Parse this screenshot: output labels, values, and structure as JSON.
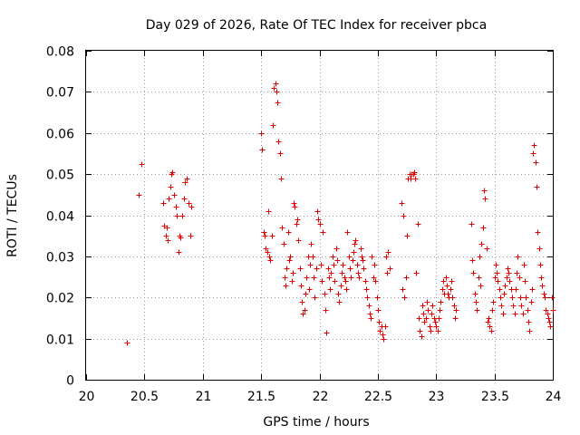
{
  "chart_data": {
    "type": "scatter",
    "title": "Day 029 of 2026, Rate Of TEC Index for receiver pbca",
    "xlabel": "GPS time / hours",
    "ylabel": "ROTI / TECUs",
    "xlim": [
      20,
      24
    ],
    "ylim": [
      0,
      0.08
    ],
    "xticks": [
      "20",
      "20.5",
      "21",
      "21.5",
      "22",
      "22.5",
      "23",
      "23.5",
      "24"
    ],
    "yticks": [
      "0",
      "0.01",
      "0.02",
      "0.03",
      "0.04",
      "0.05",
      "0.06",
      "0.07",
      "0.08"
    ],
    "marker": "+",
    "color": "#e00000",
    "grid": true,
    "series": [
      {
        "name": "ROTI",
        "points": [
          [
            20.35,
            0.009
          ],
          [
            20.45,
            0.045
          ],
          [
            20.47,
            0.0525
          ],
          [
            20.66,
            0.043
          ],
          [
            20.67,
            0.0375
          ],
          [
            20.68,
            0.035
          ],
          [
            20.69,
            0.037
          ],
          [
            20.7,
            0.034
          ],
          [
            20.71,
            0.044
          ],
          [
            20.72,
            0.047
          ],
          [
            20.73,
            0.05
          ],
          [
            20.74,
            0.0505
          ],
          [
            20.75,
            0.045
          ],
          [
            20.77,
            0.042
          ],
          [
            20.78,
            0.04
          ],
          [
            20.79,
            0.031
          ],
          [
            20.8,
            0.035
          ],
          [
            20.81,
            0.0345
          ],
          [
            20.82,
            0.04
          ],
          [
            20.84,
            0.044
          ],
          [
            20.85,
            0.048
          ],
          [
            20.86,
            0.049
          ],
          [
            20.88,
            0.043
          ],
          [
            20.89,
            0.035
          ],
          [
            20.9,
            0.042
          ],
          [
            21.5,
            0.06
          ],
          [
            21.51,
            0.056
          ],
          [
            21.52,
            0.036
          ],
          [
            21.53,
            0.035
          ],
          [
            21.54,
            0.032
          ],
          [
            21.55,
            0.031
          ],
          [
            21.56,
            0.041
          ],
          [
            21.57,
            0.03
          ],
          [
            21.58,
            0.029
          ],
          [
            21.59,
            0.035
          ],
          [
            21.6,
            0.062
          ],
          [
            21.61,
            0.071
          ],
          [
            21.62,
            0.072
          ],
          [
            21.63,
            0.07
          ],
          [
            21.64,
            0.0675
          ],
          [
            21.65,
            0.058
          ],
          [
            21.66,
            0.055
          ],
          [
            21.67,
            0.049
          ],
          [
            21.68,
            0.037
          ],
          [
            21.69,
            0.033
          ],
          [
            21.7,
            0.025
          ],
          [
            21.71,
            0.023
          ],
          [
            21.72,
            0.027
          ],
          [
            21.73,
            0.036
          ],
          [
            21.74,
            0.029
          ],
          [
            21.75,
            0.03
          ],
          [
            21.76,
            0.024
          ],
          [
            21.77,
            0.026
          ],
          [
            21.78,
            0.043
          ],
          [
            21.79,
            0.042
          ],
          [
            21.8,
            0.038
          ],
          [
            21.81,
            0.039
          ],
          [
            21.82,
            0.034
          ],
          [
            21.83,
            0.027
          ],
          [
            21.84,
            0.023
          ],
          [
            21.85,
            0.019
          ],
          [
            21.86,
            0.016
          ],
          [
            21.87,
            0.017
          ],
          [
            21.88,
            0.021
          ],
          [
            21.89,
            0.025
          ],
          [
            21.9,
            0.03
          ],
          [
            21.91,
            0.022
          ],
          [
            21.92,
            0.028
          ],
          [
            21.93,
            0.033
          ],
          [
            21.94,
            0.03
          ],
          [
            21.95,
            0.025
          ],
          [
            21.96,
            0.02
          ],
          [
            21.97,
            0.027
          ],
          [
            21.98,
            0.041
          ],
          [
            21.99,
            0.039
          ],
          [
            22.0,
            0.038
          ],
          [
            22.01,
            0.028
          ],
          [
            22.02,
            0.024
          ],
          [
            22.03,
            0.036
          ],
          [
            22.04,
            0.021
          ],
          [
            22.05,
            0.017
          ],
          [
            22.06,
            0.0115
          ],
          [
            22.07,
            0.027
          ],
          [
            22.08,
            0.025
          ],
          [
            22.09,
            0.022
          ],
          [
            22.1,
            0.026
          ],
          [
            22.11,
            0.03
          ],
          [
            22.12,
            0.028
          ],
          [
            22.13,
            0.024
          ],
          [
            22.14,
            0.032
          ],
          [
            22.15,
            0.029
          ],
          [
            22.16,
            0.021
          ],
          [
            22.17,
            0.019
          ],
          [
            22.18,
            0.023
          ],
          [
            22.19,
            0.026
          ],
          [
            22.2,
            0.028
          ],
          [
            22.21,
            0.025
          ],
          [
            22.22,
            0.024
          ],
          [
            22.23,
            0.022
          ],
          [
            22.24,
            0.036
          ],
          [
            22.25,
            0.03
          ],
          [
            22.26,
            0.027
          ],
          [
            22.27,
            0.025
          ],
          [
            22.28,
            0.029
          ],
          [
            22.29,
            0.031
          ],
          [
            22.3,
            0.033
          ],
          [
            22.31,
            0.034
          ],
          [
            22.32,
            0.028
          ],
          [
            22.33,
            0.026
          ],
          [
            22.34,
            0.025
          ],
          [
            22.35,
            0.032
          ],
          [
            22.36,
            0.03
          ],
          [
            22.37,
            0.029
          ],
          [
            22.38,
            0.027
          ],
          [
            22.39,
            0.024
          ],
          [
            22.4,
            0.022
          ],
          [
            22.41,
            0.02
          ],
          [
            22.42,
            0.018
          ],
          [
            22.43,
            0.016
          ],
          [
            22.44,
            0.015
          ],
          [
            22.45,
            0.03
          ],
          [
            22.46,
            0.025
          ],
          [
            22.47,
            0.028
          ],
          [
            22.48,
            0.024
          ],
          [
            22.49,
            0.02
          ],
          [
            22.5,
            0.017
          ],
          [
            22.51,
            0.014
          ],
          [
            22.52,
            0.012
          ],
          [
            22.53,
            0.013
          ],
          [
            22.54,
            0.011
          ],
          [
            22.55,
            0.01
          ],
          [
            22.56,
            0.013
          ],
          [
            22.57,
            0.03
          ],
          [
            22.58,
            0.026
          ],
          [
            22.59,
            0.031
          ],
          [
            22.6,
            0.027
          ],
          [
            22.7,
            0.043
          ],
          [
            22.71,
            0.022
          ],
          [
            22.72,
            0.04
          ],
          [
            22.73,
            0.02
          ],
          [
            22.74,
            0.025
          ],
          [
            22.75,
            0.035
          ],
          [
            22.76,
            0.049
          ],
          [
            22.77,
            0.05
          ],
          [
            22.78,
            0.049
          ],
          [
            22.79,
            0.05
          ],
          [
            22.8,
            0.05
          ],
          [
            22.81,
            0.0505
          ],
          [
            22.82,
            0.049
          ],
          [
            22.83,
            0.026
          ],
          [
            22.84,
            0.038
          ],
          [
            22.85,
            0.015
          ],
          [
            22.86,
            0.012
          ],
          [
            22.87,
            0.0105
          ],
          [
            22.88,
            0.018
          ],
          [
            22.89,
            0.016
          ],
          [
            22.9,
            0.014
          ],
          [
            22.91,
            0.015
          ],
          [
            22.92,
            0.019
          ],
          [
            22.93,
            0.017
          ],
          [
            22.94,
            0.013
          ],
          [
            22.95,
            0.012
          ],
          [
            22.96,
            0.016
          ],
          [
            22.97,
            0.018
          ],
          [
            22.98,
            0.015
          ],
          [
            22.99,
            0.014
          ],
          [
            23.0,
            0.013
          ],
          [
            23.01,
            0.012
          ],
          [
            23.02,
            0.015
          ],
          [
            23.03,
            0.017
          ],
          [
            23.04,
            0.019
          ],
          [
            23.05,
            0.022
          ],
          [
            23.06,
            0.024
          ],
          [
            23.07,
            0.021
          ],
          [
            23.08,
            0.025
          ],
          [
            23.09,
            0.023
          ],
          [
            23.1,
            0.021
          ],
          [
            23.11,
            0.02
          ],
          [
            23.12,
            0.022
          ],
          [
            23.13,
            0.024
          ],
          [
            23.14,
            0.02
          ],
          [
            23.15,
            0.018
          ],
          [
            23.16,
            0.015
          ],
          [
            23.17,
            0.017
          ],
          [
            23.3,
            0.038
          ],
          [
            23.31,
            0.029
          ],
          [
            23.32,
            0.026
          ],
          [
            23.33,
            0.021
          ],
          [
            23.34,
            0.019
          ],
          [
            23.35,
            0.017
          ],
          [
            23.36,
            0.025
          ],
          [
            23.37,
            0.03
          ],
          [
            23.38,
            0.023
          ],
          [
            23.39,
            0.033
          ],
          [
            23.4,
            0.037
          ],
          [
            23.41,
            0.046
          ],
          [
            23.42,
            0.044
          ],
          [
            23.43,
            0.032
          ],
          [
            23.44,
            0.014
          ],
          [
            23.45,
            0.015
          ],
          [
            23.46,
            0.013
          ],
          [
            23.47,
            0.012
          ],
          [
            23.48,
            0.017
          ],
          [
            23.49,
            0.019
          ],
          [
            23.5,
            0.025
          ],
          [
            23.51,
            0.028
          ],
          [
            23.52,
            0.026
          ],
          [
            23.53,
            0.024
          ],
          [
            23.54,
            0.022
          ],
          [
            23.55,
            0.02
          ],
          [
            23.56,
            0.018
          ],
          [
            23.57,
            0.016
          ],
          [
            23.58,
            0.021
          ],
          [
            23.59,
            0.023
          ],
          [
            23.6,
            0.025
          ],
          [
            23.61,
            0.027
          ],
          [
            23.62,
            0.026
          ],
          [
            23.63,
            0.024
          ],
          [
            23.64,
            0.022
          ],
          [
            23.65,
            0.02
          ],
          [
            23.66,
            0.018
          ],
          [
            23.67,
            0.016
          ],
          [
            23.68,
            0.022
          ],
          [
            23.69,
            0.026
          ],
          [
            23.7,
            0.03
          ],
          [
            23.71,
            0.025
          ],
          [
            23.72,
            0.02
          ],
          [
            23.73,
            0.018
          ],
          [
            23.74,
            0.016
          ],
          [
            23.75,
            0.028
          ],
          [
            23.76,
            0.024
          ],
          [
            23.77,
            0.02
          ],
          [
            23.78,
            0.017
          ],
          [
            23.79,
            0.014
          ],
          [
            23.8,
            0.012
          ],
          [
            23.81,
            0.019
          ],
          [
            23.82,
            0.022
          ],
          [
            23.83,
            0.055
          ],
          [
            23.84,
            0.057
          ],
          [
            23.85,
            0.053
          ],
          [
            23.86,
            0.047
          ],
          [
            23.87,
            0.036
          ],
          [
            23.88,
            0.032
          ],
          [
            23.89,
            0.028
          ],
          [
            23.9,
            0.025
          ],
          [
            23.91,
            0.023
          ],
          [
            23.92,
            0.021
          ],
          [
            23.93,
            0.02
          ],
          [
            23.94,
            0.017
          ],
          [
            23.95,
            0.016
          ],
          [
            23.96,
            0.015
          ],
          [
            23.97,
            0.014
          ],
          [
            23.98,
            0.013
          ],
          [
            23.99,
            0.02
          ],
          [
            24.0,
            0.017
          ]
        ]
      }
    ]
  }
}
